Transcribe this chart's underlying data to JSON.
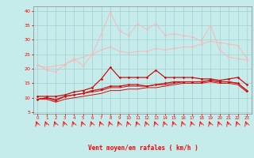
{
  "x": [
    0,
    1,
    2,
    3,
    4,
    5,
    6,
    7,
    8,
    9,
    10,
    11,
    12,
    13,
    14,
    15,
    16,
    17,
    18,
    19,
    20,
    21,
    22,
    23
  ],
  "line1": [
    21.5,
    19.5,
    19.0,
    21.5,
    23.5,
    21.0,
    25.0,
    32.0,
    39.5,
    33.0,
    31.5,
    35.5,
    33.5,
    35.5,
    31.5,
    32.0,
    31.5,
    31.0,
    29.5,
    35.0,
    26.5,
    24.0,
    23.5,
    23.0
  ],
  "line2": [
    21.0,
    20.5,
    21.0,
    21.5,
    23.0,
    24.0,
    25.0,
    26.5,
    27.5,
    26.0,
    25.5,
    26.0,
    26.0,
    27.0,
    26.5,
    27.0,
    27.5,
    27.5,
    28.5,
    29.5,
    29.0,
    28.5,
    28.0,
    23.5
  ],
  "line3": [
    10.5,
    10.5,
    10.5,
    11.0,
    12.0,
    12.5,
    13.5,
    16.5,
    20.5,
    17.0,
    17.0,
    17.0,
    17.0,
    19.5,
    17.0,
    17.0,
    17.0,
    17.0,
    16.5,
    16.5,
    16.0,
    16.5,
    17.0,
    14.5
  ],
  "line4": [
    9.5,
    10.0,
    9.0,
    10.5,
    11.0,
    11.5,
    12.5,
    13.0,
    14.0,
    14.0,
    14.5,
    14.5,
    14.0,
    14.5,
    15.0,
    15.5,
    15.5,
    15.5,
    15.5,
    16.0,
    15.5,
    15.5,
    15.0,
    12.5
  ],
  "line5_upper": [
    9.5,
    10.0,
    9.5,
    10.5,
    11.0,
    11.5,
    12.0,
    12.5,
    13.5,
    13.5,
    14.0,
    14.0,
    14.0,
    14.5,
    14.5,
    15.0,
    15.5,
    15.5,
    15.5,
    16.0,
    15.5,
    15.5,
    15.0,
    12.5
  ],
  "line5_lower": [
    9.5,
    9.5,
    8.5,
    9.5,
    10.0,
    10.5,
    11.0,
    11.5,
    12.5,
    12.5,
    13.0,
    13.0,
    13.5,
    13.5,
    14.0,
    14.5,
    15.0,
    15.0,
    15.0,
    15.5,
    15.0,
    15.0,
    14.5,
    12.0
  ],
  "bg_color": "#c5eceb",
  "grid_color": "#a0d0cf",
  "line1_color": "#f7b8b8",
  "line2_color": "#f7b8b8",
  "line3_color": "#cc1111",
  "line4_color": "#cc1111",
  "line5_color": "#cc1111",
  "line6_color": "#cc1111",
  "xlabel": "Vent moyen/en rafales ( km/h )",
  "ylabel_vals": [
    5,
    10,
    15,
    20,
    25,
    30,
    35,
    40
  ],
  "ylim": [
    4.5,
    41.5
  ],
  "xlim": [
    -0.5,
    23.5
  ]
}
